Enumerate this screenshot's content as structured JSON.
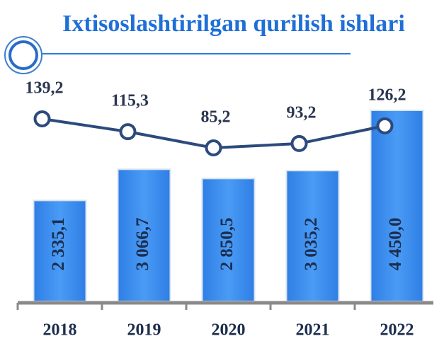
{
  "chart_data": {
    "type": "bar-line",
    "title": "Ixtisoslashtirilgan qurilish ishlari",
    "categories": [
      "2018",
      "2019",
      "2020",
      "2021",
      "2022"
    ],
    "series": [
      {
        "type": "bar",
        "color": "#3d8ff0",
        "values": [
          2335.1,
          3066.7,
          2850.5,
          3035.2,
          4450.0
        ],
        "value_labels": [
          "2 335,1",
          "3 066,7",
          "2 850,5",
          "3 035,2",
          "4 450,0"
        ]
      },
      {
        "type": "line",
        "color": "#2c4a7c",
        "values": [
          139.2,
          115.3,
          85.2,
          93.2,
          126.2
        ],
        "value_labels": [
          "139,2",
          "115,3",
          "85,2",
          "93,2",
          "126,2"
        ]
      }
    ]
  }
}
